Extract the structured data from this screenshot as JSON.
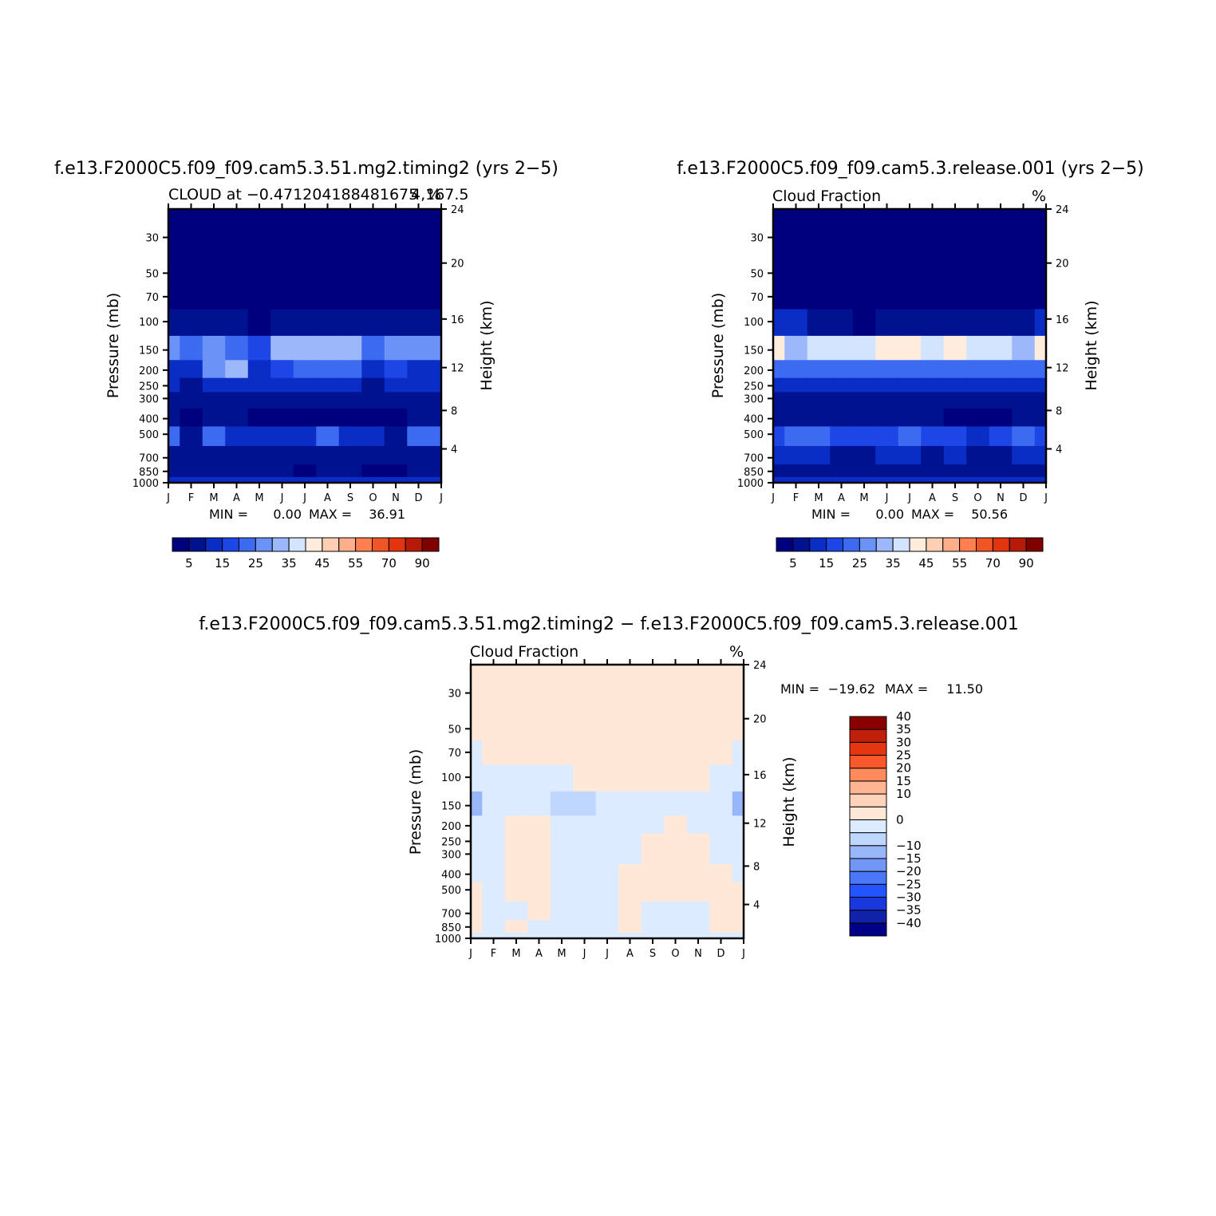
{
  "figure": {
    "panel_top_left_title": "f.e13.F2000C5.f09_f09.cam5.3.51.mg2.timing2 (yrs 2−5)",
    "panel_top_right_title": "f.e13.F2000C5.f09_f09.cam5.3.release.001 (yrs 2−5)",
    "panel_bottom_title": "f.e13.F2000C5.f09_f09.cam5.3.51.mg2.timing2 − f.e13.F2000C5.f09_f09.cam5.3.release.001"
  },
  "colors": {
    "abs_scale": [
      "#00007f",
      "#00128f",
      "#0a2dc6",
      "#1e46e6",
      "#3c6af0",
      "#6a92f7",
      "#9cb8fb",
      "#d2e4ff",
      "#ffecdc",
      "#ffcfb4",
      "#ffae8c",
      "#ff7f50",
      "#f05526",
      "#e2340f",
      "#b81a0a",
      "#800000"
    ],
    "diff_scale": [
      "#000088",
      "#1021aa",
      "#1838dd",
      "#2255ff",
      "#4a78f8",
      "#7296f6",
      "#98b6fa",
      "#bfd6ff",
      "#dcebff",
      "#ffe8d8",
      "#ffd2ba",
      "#ffb592",
      "#ff8a5c",
      "#f8582a",
      "#e43610",
      "#c0200a",
      "#8a0000"
    ]
  },
  "chart_data": [
    {
      "type": "heatmap",
      "panel": "top-left",
      "title": "f.e13.F2000C5.f09_f09.cam5.3.51.mg2.timing2 (yrs 2−5)",
      "subtitle_left": "CLOUD at −0.471204188481675",
      "subtitle_right": "%",
      "subtitle_overlap": "4,167.5",
      "ylabel": "Pressure (mb)",
      "y2label": "Height (km)",
      "x_tick_labels": [
        "J",
        "F",
        "M",
        "A",
        "M",
        "J",
        "J",
        "A",
        "S",
        "O",
        "N",
        "D",
        "J"
      ],
      "y_ticks": [
        30,
        50,
        70,
        100,
        150,
        200,
        250,
        300,
        400,
        500,
        700,
        850,
        1000
      ],
      "y_tick_labels": [
        "30",
        "50",
        "70",
        "100",
        "150",
        "200",
        "250",
        "300",
        "400",
        "500",
        "700",
        "850",
        "1000"
      ],
      "height_ticks": [
        24,
        20,
        16,
        12,
        8,
        4
      ],
      "height_tick_labels": [
        "24",
        "20",
        "16",
        "12",
        "8",
        "4"
      ],
      "levels": [
        30,
        50,
        70,
        100,
        150,
        200,
        250,
        300,
        400,
        500,
        700,
        850,
        1000
      ],
      "values": [
        [
          0,
          0,
          0,
          0,
          0,
          0,
          0,
          0,
          0,
          0,
          0,
          0,
          0
        ],
        [
          0,
          0,
          0,
          0,
          0,
          0,
          0,
          0,
          0,
          0,
          0,
          0,
          0
        ],
        [
          1,
          1,
          1,
          1,
          1,
          1,
          1,
          1,
          1,
          1,
          1,
          1,
          1
        ],
        [
          8,
          8,
          8,
          6,
          4,
          6,
          8,
          8,
          8,
          6,
          6,
          8,
          8
        ],
        [
          27,
          20,
          27,
          24,
          18,
          31,
          34,
          33,
          32,
          24,
          26,
          26,
          27
        ],
        [
          14,
          12,
          28,
          34,
          14,
          18,
          20,
          20,
          20,
          14,
          16,
          14,
          14
        ],
        [
          10,
          9,
          13,
          14,
          11,
          10,
          10,
          10,
          10,
          9,
          10,
          10,
          10
        ],
        [
          8,
          6,
          9,
          8,
          6,
          6,
          6,
          6,
          6,
          6,
          6,
          9,
          8
        ],
        [
          7,
          4,
          7,
          5,
          3,
          3,
          3,
          3,
          3,
          3,
          4,
          7,
          7
        ],
        [
          22,
          9,
          20,
          12,
          11,
          10,
          13,
          22,
          12,
          12,
          9,
          24,
          22
        ],
        [
          9,
          8,
          8,
          7,
          8,
          9,
          8,
          9,
          9,
          5,
          6,
          8,
          9
        ],
        [
          8,
          8,
          8,
          8,
          7,
          6,
          4,
          8,
          8,
          4,
          4,
          8,
          8
        ],
        [
          10,
          10,
          10,
          10,
          10,
          10,
          10,
          10,
          10,
          10,
          10,
          10,
          10
        ]
      ],
      "min_label": "MIN =",
      "min_value": "0.00",
      "max_label": "MAX =",
      "max_value": "36.91",
      "colorbar_levels": [
        5,
        10,
        15,
        20,
        25,
        30,
        35,
        40,
        45,
        50,
        55,
        60,
        70,
        80,
        90
      ],
      "colorbar_tick_labels": [
        "5",
        "15",
        "25",
        "35",
        "45",
        "55",
        "70",
        "90"
      ]
    },
    {
      "type": "heatmap",
      "panel": "top-right",
      "title": "f.e13.F2000C5.f09_f09.cam5.3.release.001 (yrs 2−5)",
      "subtitle_left": "Cloud Fraction",
      "subtitle_right": "%",
      "ylabel": "Pressure (mb)",
      "y2label": "Height (km)",
      "x_tick_labels": [
        "J",
        "F",
        "M",
        "A",
        "M",
        "J",
        "J",
        "A",
        "S",
        "O",
        "N",
        "D",
        "J"
      ],
      "y_ticks": [
        30,
        50,
        70,
        100,
        150,
        200,
        250,
        300,
        400,
        500,
        700,
        850,
        1000
      ],
      "y_tick_labels": [
        "30",
        "50",
        "70",
        "100",
        "150",
        "200",
        "250",
        "300",
        "400",
        "500",
        "700",
        "850",
        "1000"
      ],
      "height_ticks": [
        24,
        20,
        16,
        12,
        8,
        4
      ],
      "height_tick_labels": [
        "24",
        "20",
        "16",
        "12",
        "8",
        "4"
      ],
      "levels": [
        30,
        50,
        70,
        100,
        150,
        200,
        250,
        300,
        400,
        500,
        700,
        850,
        1000
      ],
      "values": [
        [
          0,
          0,
          0,
          0,
          0,
          0,
          0,
          0,
          0,
          0,
          0,
          0,
          0
        ],
        [
          0,
          0,
          0,
          0,
          0,
          0,
          0,
          0,
          0,
          0,
          0,
          0,
          0
        ],
        [
          1,
          1,
          1,
          1,
          1,
          1,
          1,
          1,
          1,
          1,
          1,
          1,
          1
        ],
        [
          10,
          10,
          8,
          6,
          4,
          6,
          8,
          8,
          8,
          6,
          6,
          8,
          10
        ],
        [
          43,
          34,
          36,
          36,
          36,
          40,
          44,
          38,
          44,
          36,
          38,
          33,
          43
        ],
        [
          22,
          20,
          20,
          22,
          24,
          24,
          24,
          22,
          24,
          24,
          22,
          20,
          22
        ],
        [
          13,
          12,
          13,
          13,
          14,
          14,
          14,
          13,
          13,
          12,
          13,
          12,
          13
        ],
        [
          8,
          7,
          8,
          8,
          8,
          8,
          8,
          7,
          7,
          7,
          7,
          8,
          8
        ],
        [
          6,
          5,
          6,
          6,
          6,
          6,
          6,
          5,
          4,
          2,
          4,
          6,
          6
        ],
        [
          18,
          20,
          23,
          16,
          16,
          18,
          22,
          16,
          16,
          14,
          16,
          21,
          18
        ],
        [
          10,
          10,
          10,
          9,
          8,
          10,
          10,
          9,
          10,
          6,
          6,
          10,
          10
        ],
        [
          8,
          8,
          8,
          8,
          7,
          8,
          6,
          8,
          8,
          6,
          6,
          8,
          8
        ],
        [
          12,
          12,
          12,
          12,
          12,
          12,
          12,
          12,
          12,
          12,
          12,
          12,
          12
        ]
      ],
      "min_label": "MIN =",
      "min_value": "0.00",
      "max_label": "MAX =",
      "max_value": "50.56",
      "colorbar_levels": [
        5,
        10,
        15,
        20,
        25,
        30,
        35,
        40,
        45,
        50,
        55,
        60,
        70,
        80,
        90
      ],
      "colorbar_tick_labels": [
        "5",
        "15",
        "25",
        "35",
        "45",
        "55",
        "70",
        "90"
      ]
    },
    {
      "type": "heatmap",
      "panel": "bottom",
      "title": "f.e13.F2000C5.f09_f09.cam5.3.51.mg2.timing2 − f.e13.F2000C5.f09_f09.cam5.3.release.001",
      "subtitle_left": "Cloud Fraction",
      "subtitle_right": "%",
      "ylabel": "Pressure (mb)",
      "y2label": "Height (km)",
      "x_tick_labels": [
        "J",
        "F",
        "M",
        "A",
        "M",
        "J",
        "J",
        "A",
        "S",
        "O",
        "N",
        "D",
        "J"
      ],
      "y_ticks": [
        30,
        50,
        70,
        100,
        150,
        200,
        250,
        300,
        400,
        500,
        700,
        850,
        1000
      ],
      "y_tick_labels": [
        "30",
        "50",
        "70",
        "100",
        "150",
        "200",
        "250",
        "300",
        "400",
        "500",
        "700",
        "850",
        "1000"
      ],
      "height_ticks": [
        24,
        20,
        16,
        12,
        8,
        4
      ],
      "height_tick_labels": [
        "24",
        "20",
        "16",
        "12",
        "8",
        "4"
      ],
      "levels": [
        30,
        50,
        70,
        100,
        150,
        200,
        250,
        300,
        400,
        500,
        700,
        850,
        1000
      ],
      "values": [
        [
          1,
          1,
          1,
          1,
          1,
          1,
          1,
          1,
          1,
          1,
          1,
          1,
          1
        ],
        [
          1,
          1,
          1,
          1,
          1,
          1,
          1,
          1,
          1,
          1,
          1,
          1,
          1
        ],
        [
          -2,
          2,
          1,
          1,
          1,
          1,
          1,
          1,
          2,
          1,
          1,
          1,
          -2
        ],
        [
          -5,
          -2,
          -1,
          -1,
          -1,
          1,
          1,
          3,
          1,
          1,
          1,
          -3,
          -5
        ],
        [
          -14,
          -4,
          -2,
          -3,
          -9,
          -7,
          -3,
          -3,
          -4,
          -4,
          -2,
          -5,
          -14
        ],
        [
          -4,
          -3,
          2,
          1,
          -2,
          -4,
          -3,
          -3,
          -1,
          1,
          -1,
          -4,
          -4
        ],
        [
          -2,
          -2,
          3,
          2,
          -1,
          -3,
          -2,
          -2,
          1,
          2,
          1,
          -2,
          -2
        ],
        [
          -1,
          -1,
          3,
          2,
          -1,
          -2,
          -2,
          -1,
          2,
          2,
          2,
          -1,
          -1
        ],
        [
          -1,
          -2,
          3,
          3,
          -2,
          -2,
          -2,
          2,
          3,
          3,
          3,
          1,
          -1
        ],
        [
          3,
          -2,
          3,
          2,
          -1,
          -2,
          -1,
          3,
          2,
          3,
          2,
          3,
          3
        ],
        [
          2,
          -1,
          -1,
          2,
          -1,
          -1,
          -1,
          1,
          -1,
          -1,
          -1,
          1,
          2
        ],
        [
          1,
          -1,
          1,
          -1,
          -1,
          -1,
          -1,
          1,
          -1,
          -1,
          -1,
          1,
          1
        ],
        [
          -1,
          -1,
          -1,
          -1,
          -1,
          -1,
          -1,
          -1,
          -1,
          -1,
          -1,
          -1,
          -1
        ]
      ],
      "min_label": "MIN =",
      "min_value": "−19.62",
      "max_label": "MAX =",
      "max_value": "11.50",
      "colorbar_levels": [
        -40,
        -35,
        -30,
        -25,
        -20,
        -15,
        -10,
        -5,
        0,
        5,
        10,
        15,
        20,
        25,
        30,
        35,
        40
      ],
      "colorbar_tick_labels": [
        "40",
        "35",
        "30",
        "25",
        "20",
        "15",
        "10",
        "0",
        "−10",
        "−15",
        "−20",
        "−25",
        "−30",
        "−35",
        "−40"
      ]
    }
  ]
}
